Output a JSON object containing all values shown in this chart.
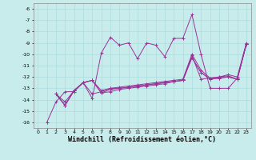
{
  "xlabel": "Windchill (Refroidissement éolien,°C)",
  "bg_color": "#c8ecec",
  "grid_color": "#aadddd",
  "line_color": "#993399",
  "marker": "+",
  "series": [
    {
      "x": [
        1,
        2,
        3,
        4,
        5,
        6,
        7,
        8,
        9,
        10,
        11,
        12,
        13,
        14,
        15,
        16,
        17,
        18,
        19,
        20,
        21,
        22,
        23
      ],
      "y": [
        -16,
        -14.2,
        -13.3,
        -13.3,
        -12.5,
        -13.5,
        -13.3,
        -13.0,
        -13.0,
        -12.9,
        -12.8,
        -12.7,
        -12.6,
        -12.5,
        -12.4,
        -12.3,
        -10.1,
        -12.2,
        -12.1,
        -12.0,
        -11.9,
        -12.2,
        -9.1
      ]
    },
    {
      "x": [
        2,
        3,
        4,
        5,
        6,
        7,
        8,
        9,
        10,
        11,
        12,
        13,
        14,
        15,
        16,
        17,
        18,
        19,
        20,
        21,
        22,
        23
      ],
      "y": [
        -13.5,
        -14.2,
        -13.2,
        -12.5,
        -13.9,
        -9.9,
        -8.5,
        -9.2,
        -9.0,
        -10.4,
        -9.0,
        -9.2,
        -10.2,
        -8.6,
        -8.6,
        -6.5,
        -10.0,
        -13.0,
        -13.0,
        -13.0,
        -12.1,
        -9.1
      ]
    },
    {
      "x": [
        2,
        3,
        4,
        5,
        6,
        7,
        8,
        9,
        10,
        11,
        12,
        13,
        14,
        15,
        16,
        17,
        18,
        19,
        20,
        21,
        22,
        23
      ],
      "y": [
        -13.5,
        -14.5,
        -13.2,
        -12.5,
        -12.3,
        -13.4,
        -13.3,
        -13.1,
        -13.0,
        -12.9,
        -12.8,
        -12.7,
        -12.6,
        -12.4,
        -12.3,
        -10.3,
        -11.6,
        -12.2,
        -12.1,
        -12.0,
        -12.2,
        -9.1
      ]
    },
    {
      "x": [
        2,
        3,
        4,
        5,
        6,
        7,
        8,
        9,
        10,
        11,
        12,
        13,
        14,
        15,
        16,
        17,
        18,
        19,
        20,
        21,
        22,
        23
      ],
      "y": [
        -13.5,
        -14.5,
        -13.2,
        -12.5,
        -12.3,
        -13.4,
        -13.1,
        -13.0,
        -12.9,
        -12.8,
        -12.7,
        -12.6,
        -12.5,
        -12.4,
        -12.3,
        -10.3,
        -11.6,
        -12.2,
        -12.1,
        -12.0,
        -12.2,
        -9.1
      ]
    },
    {
      "x": [
        2,
        3,
        4,
        5,
        6,
        7,
        8,
        9,
        10,
        11,
        12,
        13,
        14,
        15,
        16,
        17,
        18,
        19,
        20,
        21,
        22,
        23
      ],
      "y": [
        -13.5,
        -14.5,
        -13.2,
        -12.5,
        -12.3,
        -13.2,
        -13.0,
        -12.9,
        -12.8,
        -12.7,
        -12.6,
        -12.5,
        -12.4,
        -12.3,
        -12.2,
        -10.0,
        -11.4,
        -12.1,
        -12.0,
        -11.8,
        -12.0,
        -9.0
      ]
    }
  ],
  "xlim": [
    -0.5,
    23.5
  ],
  "ylim": [
    -16.5,
    -5.5
  ],
  "yticks": [
    -16,
    -15,
    -14,
    -13,
    -12,
    -11,
    -10,
    -9,
    -8,
    -7,
    -6
  ],
  "xticks": [
    0,
    1,
    2,
    3,
    4,
    5,
    6,
    7,
    8,
    9,
    10,
    11,
    12,
    13,
    14,
    15,
    16,
    17,
    18,
    19,
    20,
    21,
    22,
    23
  ],
  "tick_fontsize": 4.5,
  "xlabel_fontsize": 6.0
}
